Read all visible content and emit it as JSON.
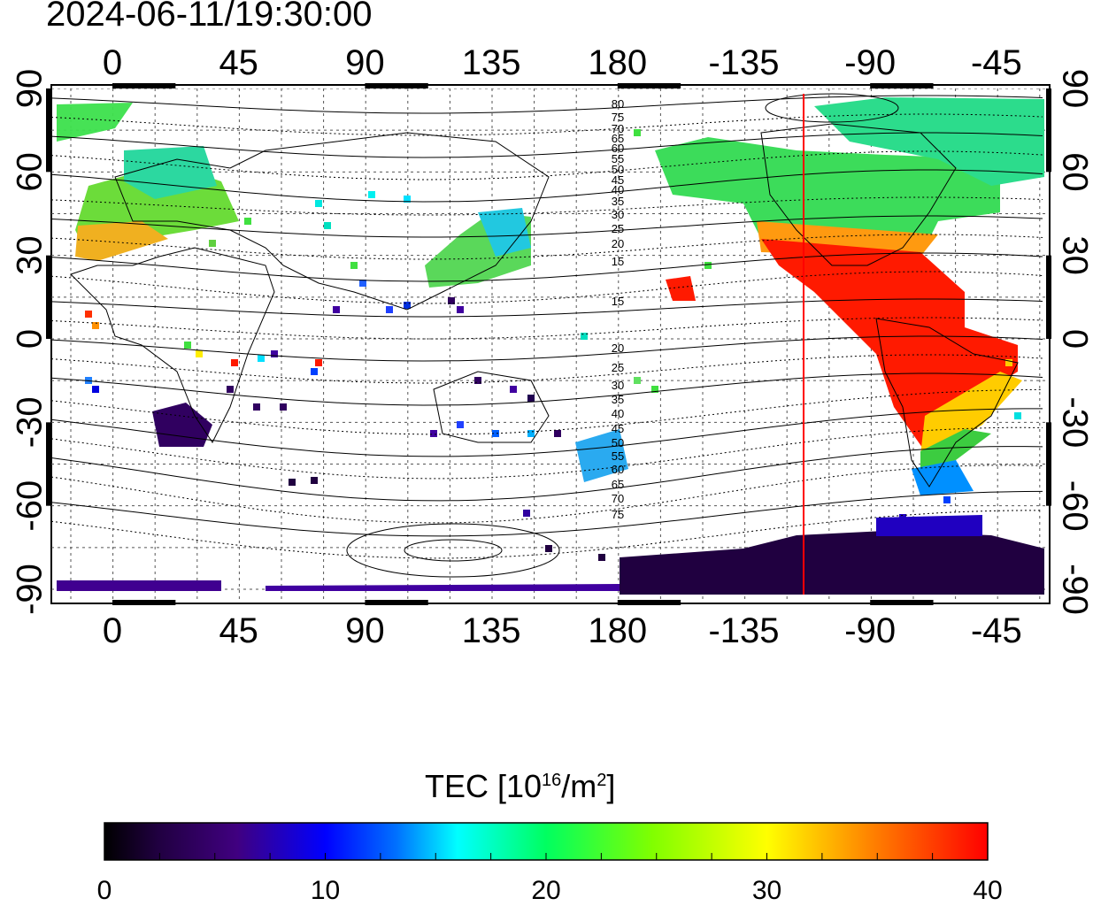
{
  "timestamp": "2024-06-11/19:30:00",
  "map": {
    "x_ticks_top": [
      "0",
      "45",
      "90",
      "135",
      "180",
      "-135",
      "-90",
      "-45"
    ],
    "x_ticks_bottom": [
      "0",
      "45",
      "90",
      "135",
      "180",
      "-135",
      "-90",
      "-45"
    ],
    "y_ticks_left": [
      "90",
      "60",
      "30",
      "0",
      "-30",
      "-60",
      "-90"
    ],
    "y_ticks_right": [
      "90",
      "60",
      "30",
      "0",
      "-30",
      "-60",
      "-90"
    ],
    "contour_labels": [
      "80",
      "75",
      "70",
      "65",
      "60",
      "55",
      "50",
      "45",
      "40",
      "35",
      "30",
      "25",
      "20",
      "15",
      "15",
      "20",
      "25",
      "30",
      "35",
      "40",
      "45",
      "50",
      "55",
      "60",
      "65",
      "70",
      "75"
    ],
    "terminator_color": "#ff0000",
    "terminator_longitude": -115
  },
  "colorbar": {
    "title_main": "TEC  [10",
    "title_exp1": "16",
    "title_mid": "/m",
    "title_exp2": "2",
    "title_end": "]",
    "tick_labels": [
      "0",
      "10",
      "20",
      "30",
      "40"
    ],
    "min": 0,
    "max": 40
  }
}
